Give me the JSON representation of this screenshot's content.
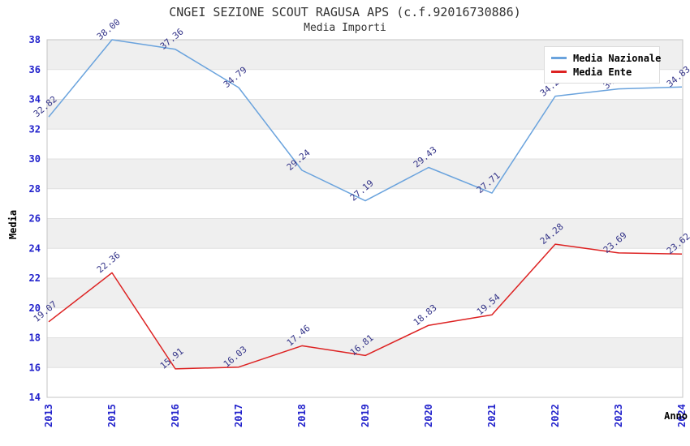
{
  "chart_data": {
    "type": "line",
    "title": "CNGEI SEZIONE SCOUT RAGUSA APS (c.f.92016730886)",
    "subtitle": "Media Importi",
    "xlabel": "Anno",
    "ylabel": "Media",
    "categories": [
      "2013",
      "2015",
      "2016",
      "2017",
      "2018",
      "2019",
      "2020",
      "2021",
      "2022",
      "2023",
      "2024"
    ],
    "series": [
      {
        "name": "Media Nazionale",
        "color": "#6aa3dd",
        "values": [
          32.82,
          38.0,
          37.36,
          34.79,
          29.24,
          27.19,
          29.43,
          27.71,
          34.21,
          34.7,
          34.83
        ]
      },
      {
        "name": "Media Ente",
        "color": "#dd2222",
        "values": [
          19.07,
          22.36,
          15.91,
          16.03,
          17.46,
          16.81,
          18.83,
          19.54,
          24.28,
          23.69,
          23.62
        ]
      }
    ],
    "ylim": [
      14,
      38
    ],
    "ytick_step": 2,
    "grid": "horizontal, alternating shaded bands",
    "legend_position": "top-right",
    "colors": {
      "tick_label": "#2222cc",
      "point_label": "#333388",
      "band": "#efefef",
      "gridline": "#e0e0e0",
      "plot_border": "#c4c4c4",
      "title_text": "#333333"
    }
  }
}
